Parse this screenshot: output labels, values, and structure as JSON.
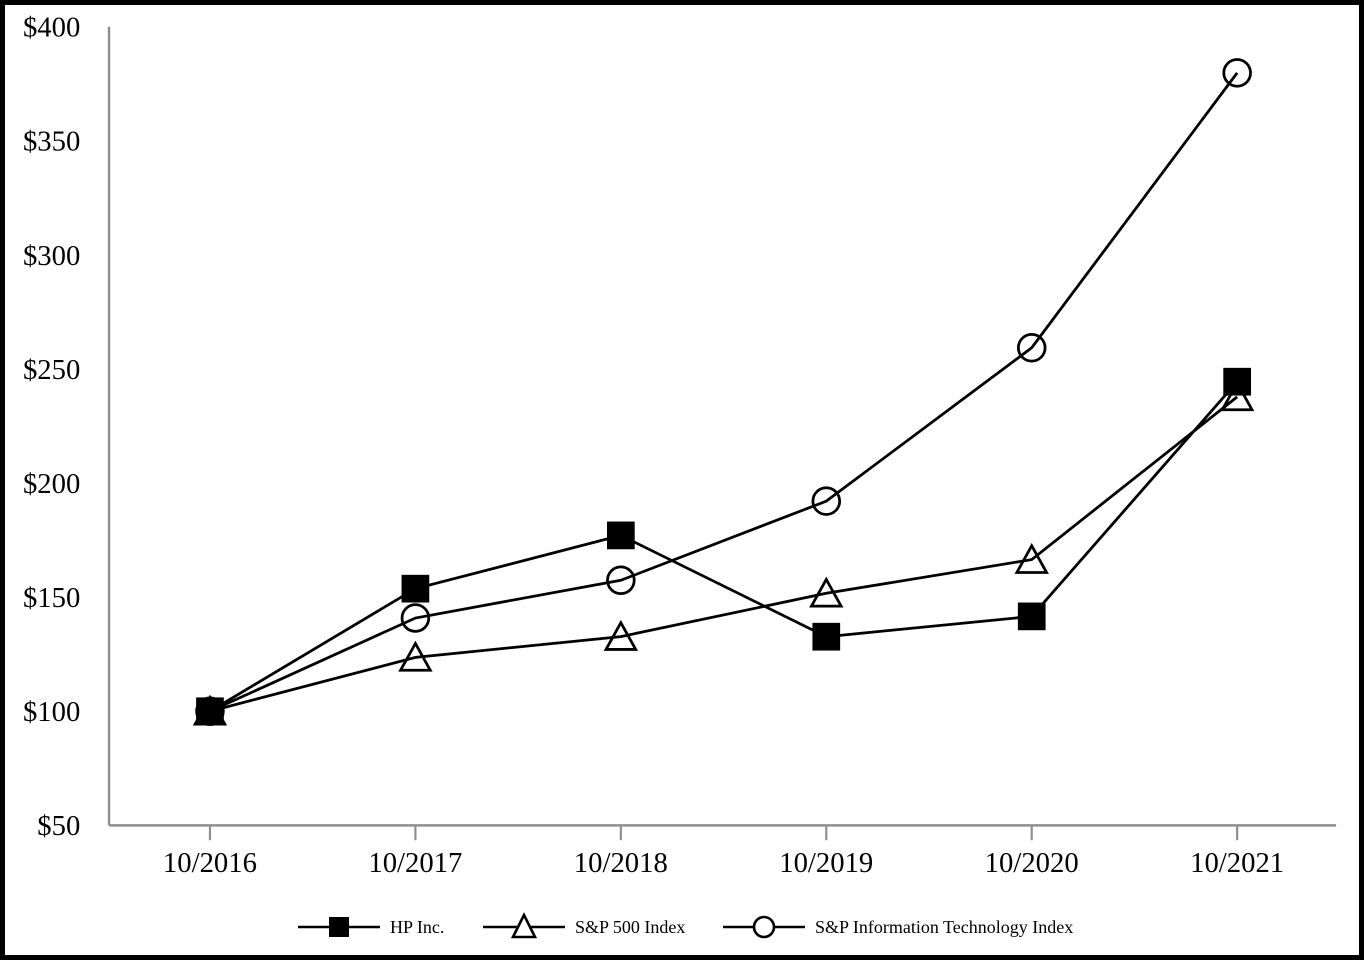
{
  "chart_data": {
    "type": "line",
    "title": "",
    "xlabel": "",
    "ylabel": "",
    "categories": [
      "10/2016",
      "10/2017",
      "10/2018",
      "10/2019",
      "10/2020",
      "10/2021"
    ],
    "y_ticks": [
      {
        "label": "$400",
        "value": 400
      },
      {
        "label": "$350",
        "value": 350
      },
      {
        "label": "$300",
        "value": 300
      },
      {
        "label": "$250",
        "value": 250
      },
      {
        "label": "$200",
        "value": 200
      },
      {
        "label": "$150",
        "value": 150
      },
      {
        "label": "$100",
        "value": 100
      },
      {
        "label": "$50",
        "value": 50
      }
    ],
    "ylim": [
      50,
      400
    ],
    "grid": false,
    "legend_position": "bottom",
    "series": [
      {
        "name": "HP Inc.",
        "marker": "filled-square",
        "values": [
          100.0,
          153.74,
          177.08,
          132.68,
          141.59,
          244.44
        ]
      },
      {
        "name": "S&P 500 Index",
        "marker": "open-triangle",
        "values": [
          100.0,
          123.63,
          132.74,
          151.72,
          166.48,
          237.79
        ]
      },
      {
        "name": "S&P Information Technology Index",
        "marker": "open-circle",
        "values": [
          100.0,
          140.87,
          157.42,
          192.1,
          259.32,
          379.79
        ]
      }
    ],
    "colors": {
      "series_line": "#000000",
      "marker_fill": "#000000",
      "axis": "#8f8f8f",
      "text": "#000000",
      "background": "#ffffff",
      "border": "#000000"
    }
  }
}
